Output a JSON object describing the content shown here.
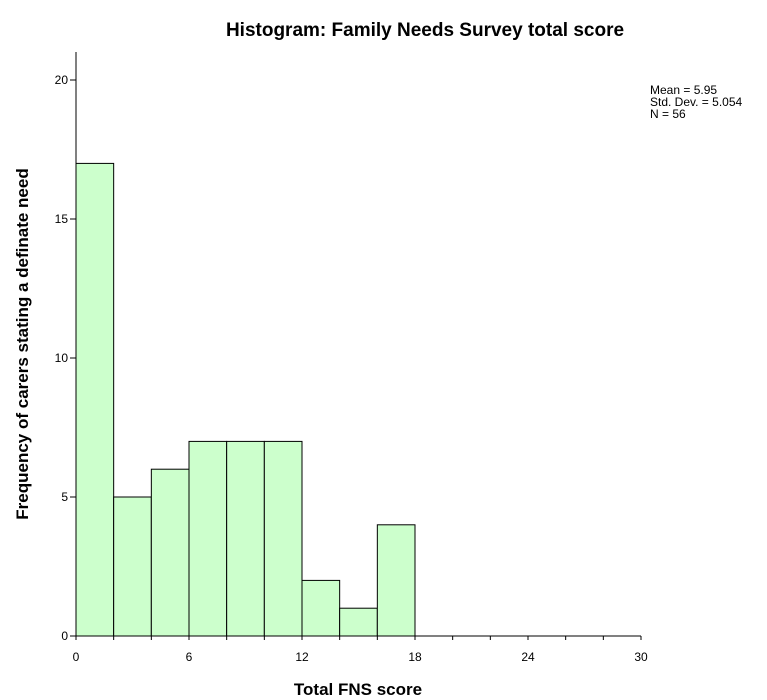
{
  "chart_data": {
    "type": "bar",
    "title": "Histogram: Family Needs Survey total score",
    "xlabel": "Total FNS score",
    "ylabel": "Frequency of carers stating a definate need",
    "xlim": [
      0,
      30
    ],
    "ylim": [
      0,
      21
    ],
    "bin_width": 2,
    "bins": [
      {
        "start": 0,
        "end": 2,
        "count": 17
      },
      {
        "start": 2,
        "end": 4,
        "count": 5
      },
      {
        "start": 4,
        "end": 6,
        "count": 6
      },
      {
        "start": 6,
        "end": 8,
        "count": 7
      },
      {
        "start": 8,
        "end": 10,
        "count": 7
      },
      {
        "start": 10,
        "end": 12,
        "count": 7
      },
      {
        "start": 12,
        "end": 14,
        "count": 2
      },
      {
        "start": 14,
        "end": 16,
        "count": 1
      },
      {
        "start": 16,
        "end": 18,
        "count": 4
      }
    ],
    "xticks": [
      "0",
      "6",
      "12",
      "18",
      "24",
      "30"
    ],
    "yticks": [
      "0",
      "5",
      "10",
      "15",
      "20"
    ],
    "stats": {
      "mean": "Mean = 5.95",
      "std": "Std. Dev. = 5.054",
      "n": "N = 56"
    },
    "bar_color": "#ccffcc",
    "grid": false,
    "legend": "none"
  }
}
